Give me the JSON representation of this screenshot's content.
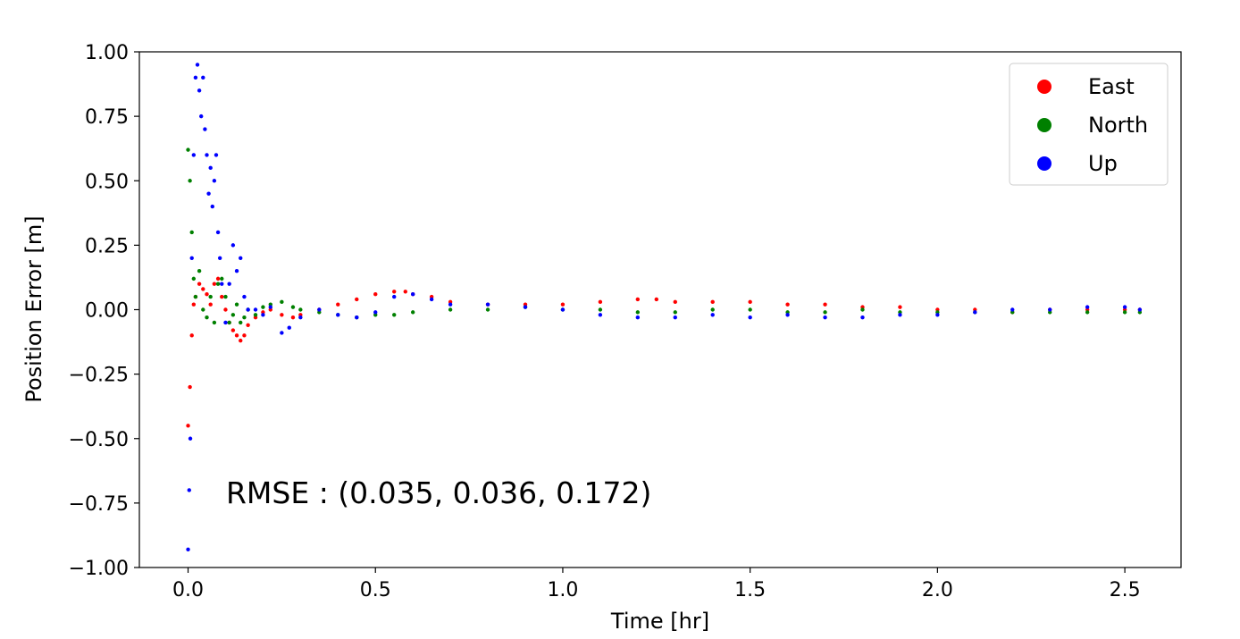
{
  "chart_data": {
    "type": "scatter",
    "title": "",
    "xlabel": "Time [hr]",
    "ylabel": "Position Error [m]",
    "xlim": [
      -0.13,
      2.65
    ],
    "ylim": [
      -1.0,
      1.0
    ],
    "xticks": [
      0.0,
      0.5,
      1.0,
      1.5,
      2.0,
      2.5
    ],
    "xtick_labels": [
      "0.0",
      "0.5",
      "1.0",
      "1.5",
      "2.0",
      "2.5"
    ],
    "yticks": [
      1.0,
      0.75,
      0.5,
      0.25,
      0.0,
      -0.25,
      -0.5,
      -0.75,
      -1.0
    ],
    "ytick_labels": [
      "1.00",
      "0.75",
      "0.50",
      "0.25",
      "0.00",
      "−0.25",
      "−0.50",
      "−0.75",
      "−1.00"
    ],
    "grid": false,
    "legend_position": "top-right",
    "annotation": "RMSE : (0.035, 0.036, 0.172)",
    "series": [
      {
        "name": "East",
        "color": "#ff0000",
        "x": [
          0.0,
          0.005,
          0.01,
          0.015,
          0.02,
          0.03,
          0.04,
          0.05,
          0.06,
          0.07,
          0.08,
          0.09,
          0.1,
          0.11,
          0.12,
          0.13,
          0.14,
          0.15,
          0.16,
          0.18,
          0.2,
          0.22,
          0.25,
          0.28,
          0.3,
          0.35,
          0.4,
          0.45,
          0.5,
          0.55,
          0.58,
          0.6,
          0.65,
          0.7,
          0.8,
          0.9,
          1.0,
          1.1,
          1.2,
          1.25,
          1.3,
          1.4,
          1.5,
          1.6,
          1.7,
          1.8,
          1.9,
          2.0,
          2.1,
          2.2,
          2.3,
          2.4,
          2.5,
          2.54
        ],
        "y": [
          -0.45,
          -0.3,
          -0.1,
          0.02,
          0.05,
          0.1,
          0.08,
          0.06,
          0.02,
          0.1,
          0.12,
          0.05,
          0.0,
          -0.05,
          -0.08,
          -0.1,
          -0.12,
          -0.1,
          -0.06,
          -0.03,
          -0.01,
          0.0,
          -0.02,
          -0.03,
          -0.02,
          0.0,
          0.02,
          0.04,
          0.06,
          0.07,
          0.07,
          0.06,
          0.05,
          0.03,
          0.02,
          0.02,
          0.02,
          0.03,
          0.04,
          0.04,
          0.03,
          0.03,
          0.03,
          0.02,
          0.02,
          0.01,
          0.01,
          0.0,
          0.0,
          -0.01,
          0.0,
          0.0,
          0.0,
          0.0
        ]
      },
      {
        "name": "North",
        "color": "#008000",
        "x": [
          0.0,
          0.005,
          0.01,
          0.015,
          0.02,
          0.03,
          0.04,
          0.05,
          0.06,
          0.07,
          0.08,
          0.09,
          0.1,
          0.11,
          0.12,
          0.13,
          0.14,
          0.15,
          0.16,
          0.18,
          0.2,
          0.22,
          0.25,
          0.28,
          0.3,
          0.35,
          0.4,
          0.45,
          0.5,
          0.55,
          0.6,
          0.7,
          0.8,
          0.9,
          1.0,
          1.1,
          1.2,
          1.3,
          1.4,
          1.5,
          1.6,
          1.7,
          1.8,
          1.9,
          2.0,
          2.1,
          2.2,
          2.3,
          2.4,
          2.5,
          2.54
        ],
        "y": [
          0.62,
          0.5,
          0.3,
          0.12,
          0.05,
          0.15,
          0.0,
          -0.03,
          0.05,
          -0.05,
          0.1,
          0.12,
          0.05,
          -0.05,
          -0.02,
          0.02,
          -0.05,
          -0.03,
          0.0,
          -0.02,
          0.01,
          0.02,
          0.03,
          0.01,
          0.0,
          -0.01,
          -0.02,
          -0.03,
          -0.02,
          -0.02,
          -0.01,
          0.0,
          0.0,
          0.01,
          0.0,
          0.0,
          -0.01,
          -0.01,
          0.0,
          0.0,
          -0.01,
          -0.01,
          0.0,
          -0.01,
          -0.01,
          -0.01,
          -0.01,
          -0.01,
          -0.01,
          -0.01,
          -0.01
        ]
      },
      {
        "name": "Up",
        "color": "#0000ff",
        "x": [
          0.0,
          0.003,
          0.006,
          0.01,
          0.015,
          0.02,
          0.025,
          0.03,
          0.035,
          0.04,
          0.045,
          0.05,
          0.055,
          0.06,
          0.065,
          0.07,
          0.075,
          0.08,
          0.085,
          0.09,
          0.1,
          0.11,
          0.12,
          0.13,
          0.14,
          0.15,
          0.16,
          0.18,
          0.2,
          0.22,
          0.25,
          0.27,
          0.3,
          0.35,
          0.4,
          0.45,
          0.5,
          0.55,
          0.6,
          0.65,
          0.7,
          0.8,
          0.9,
          1.0,
          1.1,
          1.2,
          1.3,
          1.4,
          1.5,
          1.6,
          1.7,
          1.8,
          1.9,
          2.0,
          2.1,
          2.2,
          2.3,
          2.4,
          2.5,
          2.54
        ],
        "y": [
          -0.93,
          -0.7,
          -0.5,
          0.2,
          0.6,
          0.9,
          0.95,
          0.85,
          0.75,
          0.9,
          0.7,
          0.6,
          0.45,
          0.55,
          0.4,
          0.5,
          0.6,
          0.3,
          0.2,
          0.1,
          -0.05,
          0.1,
          0.25,
          0.15,
          0.2,
          0.05,
          0.0,
          0.0,
          -0.02,
          0.01,
          -0.09,
          -0.07,
          -0.03,
          0.0,
          -0.02,
          -0.03,
          -0.01,
          0.05,
          0.06,
          0.04,
          0.02,
          0.02,
          0.01,
          0.0,
          -0.02,
          -0.03,
          -0.03,
          -0.02,
          -0.03,
          -0.02,
          -0.03,
          -0.03,
          -0.02,
          -0.02,
          -0.01,
          0.0,
          0.0,
          0.01,
          0.01,
          0.0
        ]
      }
    ]
  }
}
